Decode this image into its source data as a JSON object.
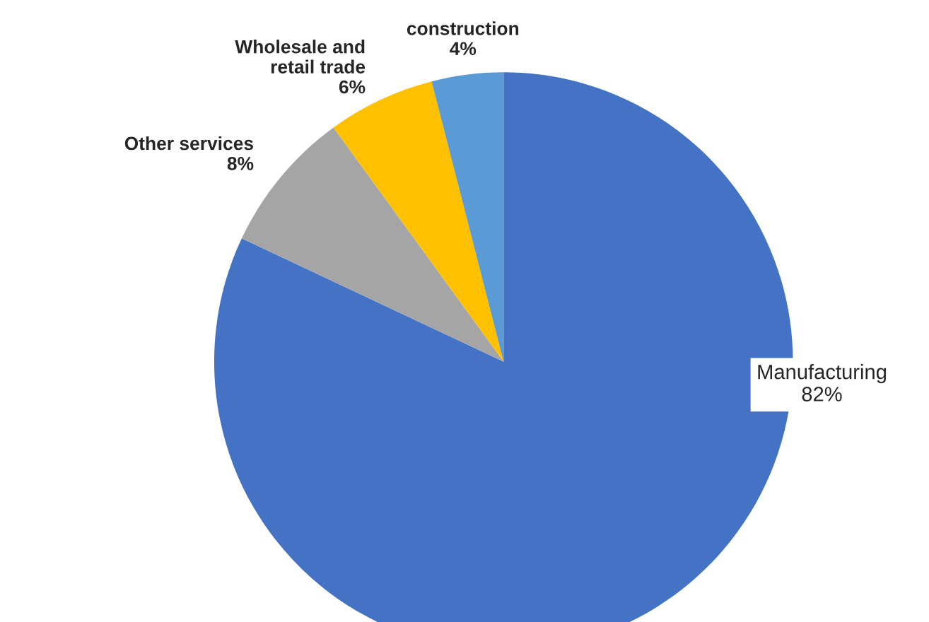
{
  "chart_data": {
    "type": "pie",
    "categories": [
      "Manufacturing",
      "Other services",
      "Wholesale and\nretail trade",
      "construction"
    ],
    "values": [
      82,
      8,
      6,
      4
    ],
    "value_labels": [
      "82%",
      "8%",
      "6%",
      "4%"
    ],
    "colors": [
      "#4472c4",
      "#a5a5a5",
      "#ffc000",
      "#5b9bd5"
    ],
    "legend": false
  }
}
